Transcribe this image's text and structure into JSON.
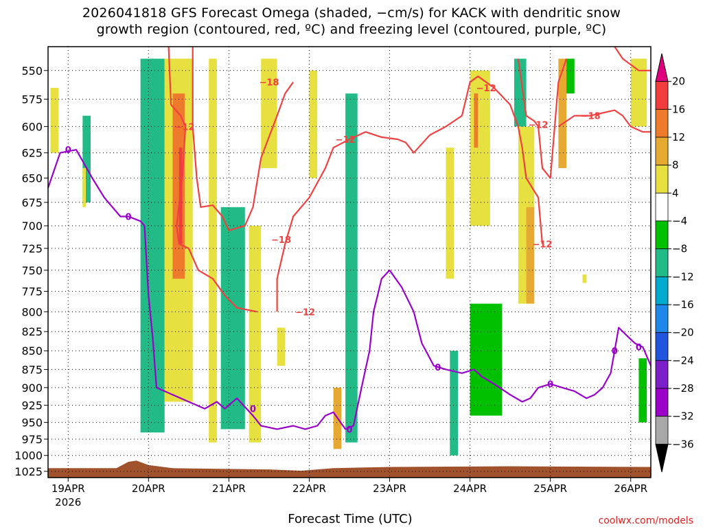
{
  "title_line1": "2026041818 GFS Forecast Omega (shaded, −cm/s) for KACK with dendritic snow",
  "title_line2": "growth region (contoured, red, ºC) and freezing level (contoured, purple, ºC)",
  "chart_data": {
    "type": "heatmap",
    "title": "2026041818 GFS Forecast Omega (shaded, −cm/s) for KACK with dendritic snow growth region (contoured, red, ºC) and freezing level (contoured, purple, ºC)",
    "xlabel": "Forecast Time (UTC)",
    "ylabel": "",
    "x_ticks": [
      "19APR",
      "20APR",
      "21APR",
      "22APR",
      "23APR",
      "24APR",
      "25APR",
      "26APR"
    ],
    "x_year": "2026",
    "y_ticks": [
      550,
      575,
      600,
      625,
      650,
      675,
      700,
      725,
      750,
      775,
      800,
      825,
      850,
      875,
      900,
      925,
      950,
      975,
      1000,
      1025
    ],
    "ylim": [
      530,
      1035
    ],
    "y_scale": "log-pressure",
    "x_range_days_since_19APR": [
      -0.25,
      7.25
    ],
    "grid": "dotted",
    "colorbar": {
      "levels": [
        20,
        16,
        12,
        8,
        4,
        -4,
        -8,
        -12,
        -16,
        -20,
        -24,
        -28,
        -32,
        -36
      ],
      "labels": [
        "20",
        "16",
        "12",
        "8",
        "4",
        "−4",
        "−8",
        "−12",
        "−16",
        "−20",
        "−24",
        "−28",
        "−32",
        "−36"
      ],
      "colors": [
        "#e0007f",
        "#f03c3c",
        "#ee7a2c",
        "#e6aa32",
        "#e6e040",
        "#ffffff",
        "#00c000",
        "#22bb88",
        "#00aacc",
        "#1e88e8",
        "#2255dd",
        "#7b1fc9",
        "#9a00c8",
        "#a8a8a8",
        "#000000"
      ]
    },
    "shaded_regions": [
      {
        "x": [
          -0.22,
          -0.12
        ],
        "p": [
          565,
          625
        ],
        "value": 6
      },
      {
        "x": [
          0.18,
          0.28
        ],
        "p": [
          590,
          675
        ],
        "value": -10
      },
      {
        "x": [
          0.18,
          0.22
        ],
        "p": [
          640,
          680
        ],
        "value": 6
      },
      {
        "x": [
          0.9,
          1.2
        ],
        "p": [
          540,
          965
        ],
        "value": -9
      },
      {
        "x": [
          1.2,
          1.55
        ],
        "p": [
          540,
          920
        ],
        "value": 7
      },
      {
        "x": [
          1.3,
          1.45
        ],
        "p": [
          570,
          760
        ],
        "value": 13
      },
      {
        "x": [
          1.38,
          1.42
        ],
        "p": [
          620,
          720
        ],
        "value": 18
      },
      {
        "x": [
          1.75,
          1.85
        ],
        "p": [
          540,
          980
        ],
        "value": 5
      },
      {
        "x": [
          1.9,
          2.2
        ],
        "p": [
          680,
          960
        ],
        "value": -12
      },
      {
        "x": [
          2.25,
          2.4
        ],
        "p": [
          700,
          980
        ],
        "value": 4
      },
      {
        "x": [
          2.4,
          2.6
        ],
        "p": [
          540,
          640
        ],
        "value": 5
      },
      {
        "x": [
          2.6,
          2.7
        ],
        "p": [
          820,
          870
        ],
        "value": 5
      },
      {
        "x": [
          3.0,
          3.1
        ],
        "p": [
          550,
          650
        ],
        "value": 5
      },
      {
        "x": [
          3.3,
          3.4
        ],
        "p": [
          900,
          990
        ],
        "value": 10
      },
      {
        "x": [
          3.45,
          3.6
        ],
        "p": [
          570,
          980
        ],
        "value": -12
      },
      {
        "x": [
          4.7,
          4.8
        ],
        "p": [
          620,
          760
        ],
        "value": 5
      },
      {
        "x": [
          4.75,
          4.85
        ],
        "p": [
          850,
          1000
        ],
        "value": -12
      },
      {
        "x": [
          5.0,
          5.25
        ],
        "p": [
          550,
          700
        ],
        "value": 7
      },
      {
        "x": [
          5.05,
          5.1
        ],
        "p": [
          570,
          620
        ],
        "value": 12
      },
      {
        "x": [
          5.0,
          5.4
        ],
        "p": [
          790,
          940
        ],
        "value": -8
      },
      {
        "x": [
          5.55,
          5.7
        ],
        "p": [
          540,
          600
        ],
        "value": -10
      },
      {
        "x": [
          5.6,
          5.8
        ],
        "p": [
          600,
          790
        ],
        "value": 5
      },
      {
        "x": [
          5.7,
          5.8
        ],
        "p": [
          680,
          790
        ],
        "value": 10
      },
      {
        "x": [
          6.1,
          6.2
        ],
        "p": [
          540,
          640
        ],
        "value": 10
      },
      {
        "x": [
          6.2,
          6.3
        ],
        "p": [
          540,
          570
        ],
        "value": -8
      },
      {
        "x": [
          6.4,
          6.45
        ],
        "p": [
          755,
          765
        ],
        "value": 5
      },
      {
        "x": [
          7.0,
          7.2
        ],
        "p": [
          540,
          600
        ],
        "value": 5
      },
      {
        "x": [
          7.1,
          7.2
        ],
        "p": [
          860,
          950
        ],
        "value": -8
      }
    ],
    "contours": [
      {
        "name": "dendritic snow growth region",
        "color": "#f04040",
        "labels": [
          "−12",
          "−18",
          "−18",
          "−12",
          "−12",
          "−12",
          "−18",
          "−12",
          "−12"
        ],
        "lines": [
          [
            [
              1.25,
              530
            ],
            [
              1.28,
              580
            ],
            [
              1.4,
              590
            ],
            [
              1.46,
              600
            ],
            [
              1.42,
              650
            ],
            [
              1.35,
              700
            ],
            [
              1.38,
              720
            ],
            [
              1.5,
              725
            ],
            [
              1.62,
              750
            ],
            [
              1.8,
              760
            ],
            [
              1.95,
              780
            ],
            [
              2.1,
              795
            ],
            [
              2.35,
              800
            ]
          ],
          [
            [
              1.55,
              530
            ],
            [
              1.55,
              600
            ],
            [
              1.6,
              650
            ],
            [
              1.65,
              680
            ],
            [
              1.8,
              678
            ],
            [
              1.92,
              690
            ],
            [
              2.0,
              705
            ],
            [
              2.2,
              700
            ],
            [
              2.3,
              680
            ],
            [
              2.4,
              630
            ],
            [
              2.6,
              590
            ],
            [
              2.7,
              570
            ],
            [
              2.8,
              560
            ]
          ],
          [
            [
              2.6,
              800
            ],
            [
              2.6,
              760
            ],
            [
              2.7,
              720
            ],
            [
              2.8,
              690
            ],
            [
              3.0,
              670
            ],
            [
              3.2,
              640
            ],
            [
              3.3,
              620
            ],
            [
              3.5,
              612
            ],
            [
              3.7,
              605
            ],
            [
              3.9,
              610
            ],
            [
              4.1,
              612
            ],
            [
              4.2,
              615
            ],
            [
              4.3,
              625
            ],
            [
              4.5,
              608
            ],
            [
              4.7,
              600
            ],
            [
              4.9,
              590
            ],
            [
              5.0,
              560
            ],
            [
              5.1,
              555
            ],
            [
              5.3,
              565
            ],
            [
              5.5,
              580
            ],
            [
              5.6,
              600
            ],
            [
              5.65,
              620
            ],
            [
              5.7,
              650
            ],
            [
              5.85,
              670
            ],
            [
              5.9,
              720
            ]
          ],
          [
            [
              5.6,
              540
            ],
            [
              5.7,
              590
            ],
            [
              5.8,
              595
            ],
            [
              5.85,
              600
            ],
            [
              5.9,
              640
            ],
            [
              6.0,
              650
            ],
            [
              6.1,
              560
            ],
            [
              6.2,
              540
            ]
          ],
          [
            [
              6.1,
              600
            ],
            [
              6.3,
              590
            ],
            [
              6.5,
              590
            ],
            [
              6.8,
              585
            ],
            [
              6.9,
              590
            ],
            [
              7.0,
              600
            ],
            [
              7.15,
              605
            ],
            [
              7.25,
              605
            ]
          ],
          [
            [
              6.8,
              530
            ],
            [
              6.9,
              540
            ],
            [
              7.1,
              550
            ],
            [
              7.25,
              550
            ]
          ]
        ]
      },
      {
        "name": "freezing level (0 ºC)",
        "color": "#9a00cc",
        "labels": [
          "0",
          "0",
          "0",
          "0",
          "0",
          "0",
          "0",
          "0"
        ],
        "lines": [
          [
            [
              -0.25,
              660
            ],
            [
              -0.1,
              625
            ],
            [
              0.1,
              622
            ],
            [
              0.3,
              650
            ],
            [
              0.45,
              670
            ],
            [
              0.55,
              680
            ],
            [
              0.65,
              690
            ],
            [
              0.75,
              690
            ],
            [
              0.9,
              695
            ],
            [
              0.95,
              700
            ],
            [
              1.0,
              780
            ],
            [
              1.05,
              830
            ],
            [
              1.1,
              900
            ],
            [
              1.3,
              910
            ],
            [
              1.5,
              920
            ],
            [
              1.7,
              930
            ],
            [
              1.85,
              920
            ],
            [
              1.95,
              930
            ],
            [
              2.1,
              915
            ],
            [
              2.3,
              940
            ],
            [
              2.4,
              955
            ],
            [
              2.6,
              960
            ],
            [
              2.8,
              955
            ],
            [
              2.95,
              960
            ],
            [
              3.1,
              955
            ],
            [
              3.2,
              940
            ],
            [
              3.3,
              935
            ],
            [
              3.45,
              960
            ],
            [
              3.55,
              955
            ],
            [
              3.65,
              900
            ],
            [
              3.75,
              850
            ],
            [
              3.8,
              800
            ],
            [
              3.85,
              780
            ],
            [
              3.9,
              760
            ],
            [
              4.0,
              750
            ],
            [
              4.15,
              770
            ],
            [
              4.3,
              800
            ],
            [
              4.4,
              840
            ],
            [
              4.55,
              870
            ],
            [
              4.7,
              875
            ],
            [
              4.9,
              880
            ],
            [
              5.05,
              875
            ],
            [
              5.15,
              885
            ],
            [
              5.3,
              895
            ],
            [
              5.5,
              910
            ],
            [
              5.65,
              920
            ],
            [
              5.75,
              915
            ],
            [
              5.85,
              900
            ],
            [
              6.0,
              895
            ],
            [
              6.15,
              900
            ],
            [
              6.3,
              905
            ],
            [
              6.45,
              915
            ],
            [
              6.55,
              910
            ],
            [
              6.65,
              900
            ],
            [
              6.75,
              880
            ],
            [
              6.85,
              820
            ],
            [
              6.95,
              830
            ],
            [
              7.05,
              840
            ],
            [
              7.15,
              845
            ],
            [
              7.25,
              870
            ]
          ]
        ]
      }
    ]
  },
  "credit": "coolwx.com/models"
}
